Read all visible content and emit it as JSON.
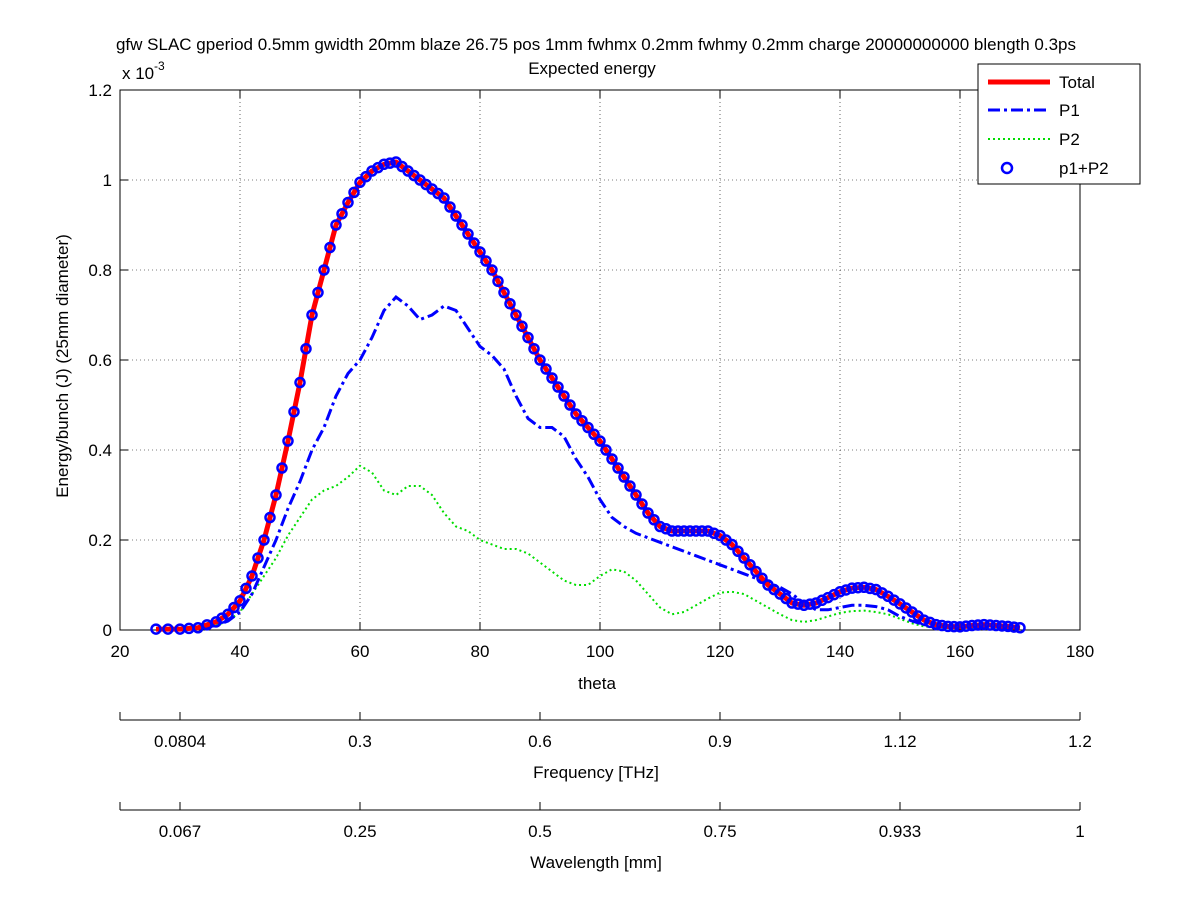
{
  "chart_data": {
    "type": "line",
    "title_line1": "gfw SLAC gperiod 0.5mm gwidth 20mm blaze 26.75 pos 1mm fwhmx 0.2mm fwhmy 0.2mm charge 20000000000 blength 0.3ps",
    "title_line2": "Expected energy",
    "xlabel": "theta",
    "ylabel": "Energy/bunch (J) (25mm diameter)",
    "y_exponent_base": "x 10",
    "y_exponent_power": "-3",
    "xlim": [
      20,
      180
    ],
    "ylim": [
      0,
      0.0012
    ],
    "xticks": [
      20,
      40,
      60,
      80,
      100,
      120,
      140,
      160,
      180
    ],
    "yticks": [
      0,
      0.2,
      0.4,
      0.6,
      0.8,
      1,
      1.2
    ],
    "grid": true,
    "legend_position": "top-right",
    "series": [
      {
        "name": "Total",
        "style": "solid",
        "color": "#ff0000",
        "x": [
          26,
          30,
          33,
          36,
          38,
          40,
          42,
          44,
          46,
          48,
          50,
          52,
          54,
          56,
          58,
          60,
          62,
          64,
          66,
          68,
          70,
          72,
          74,
          76,
          78,
          80,
          82,
          84,
          86,
          88,
          90,
          92,
          94,
          96,
          98,
          100,
          102,
          104,
          106,
          108,
          110,
          112,
          114,
          116,
          118,
          120,
          122,
          124,
          126,
          128,
          130,
          132,
          134,
          136,
          138,
          140,
          142,
          144,
          146,
          148,
          150,
          152,
          154,
          156,
          158,
          160,
          162,
          164,
          166,
          168,
          170
        ],
        "y": [
          2e-06,
          2e-06,
          5e-06,
          1.8e-05,
          3.5e-05,
          6.5e-05,
          0.00012,
          0.0002,
          0.0003,
          0.00042,
          0.00055,
          0.0007,
          0.0008,
          0.0009,
          0.00095,
          0.000995,
          0.00102,
          0.001035,
          0.00104,
          0.00102,
          0.001,
          0.00098,
          0.00096,
          0.00092,
          0.00088,
          0.00084,
          0.0008,
          0.00075,
          0.0007,
          0.00065,
          0.0006,
          0.00056,
          0.00052,
          0.00048,
          0.00045,
          0.00042,
          0.00038,
          0.00034,
          0.0003,
          0.00026,
          0.00023,
          0.00022,
          0.00022,
          0.00022,
          0.00022,
          0.00021,
          0.00019,
          0.00016,
          0.00013,
          0.0001,
          8e-05,
          6e-05,
          5.5e-05,
          6e-05,
          7.2e-05,
          8.5e-05,
          9.3e-05,
          9.5e-05,
          9e-05,
          7.5e-05,
          5.8e-05,
          4e-05,
          2.2e-05,
          1.2e-05,
          8e-06,
          7e-06,
          1e-05,
          1.2e-05,
          1e-05,
          8e-06,
          5e-06
        ]
      },
      {
        "name": "P1",
        "style": "dashdot",
        "color": "#0000ff",
        "x": [
          26,
          30,
          33,
          36,
          38,
          40,
          42,
          44,
          46,
          48,
          50,
          52,
          54,
          56,
          58,
          60,
          62,
          64,
          66,
          68,
          70,
          72,
          74,
          76,
          78,
          80,
          82,
          84,
          86,
          88,
          90,
          92,
          94,
          96,
          98,
          100,
          102,
          104,
          106,
          108,
          110,
          112,
          114,
          116,
          118,
          120,
          122,
          124,
          126,
          128,
          130,
          132,
          134,
          136,
          138,
          140,
          142,
          144,
          146,
          148,
          150,
          152,
          154,
          156,
          158,
          160,
          162,
          164,
          166,
          168,
          170
        ],
        "y": [
          5e-07,
          1e-06,
          3e-06,
          1e-05,
          2e-05,
          4e-05,
          8e-05,
          0.00014,
          0.0002,
          0.00027,
          0.00033,
          0.0004,
          0.00045,
          0.00052,
          0.00057,
          0.0006,
          0.00065,
          0.00071,
          0.00074,
          0.00072,
          0.00069,
          0.0007,
          0.00072,
          0.00071,
          0.00067,
          0.00063,
          0.00061,
          0.00058,
          0.00052,
          0.00047,
          0.00045,
          0.00045,
          0.00043,
          0.00038,
          0.00034,
          0.00029,
          0.00025,
          0.00023,
          0.000215,
          0.000205,
          0.000195,
          0.000185,
          0.000175,
          0.000165,
          0.000155,
          0.000145,
          0.000135,
          0.000125,
          0.000115,
          0.000105,
          9.5e-05,
          8e-05,
          6e-05,
          4.5e-05,
          4.5e-05,
          5e-05,
          5.5e-05,
          5.5e-05,
          5.2e-05,
          4.5e-05,
          3e-05,
          2e-05,
          1.2e-05,
          8e-06,
          6e-06,
          5e-06,
          5e-06,
          5e-06,
          4e-06,
          3e-06,
          2e-06
        ]
      },
      {
        "name": "P2",
        "style": "dotted",
        "color": "#00dd00",
        "x": [
          26,
          30,
          33,
          36,
          38,
          40,
          42,
          44,
          46,
          48,
          50,
          52,
          54,
          56,
          58,
          60,
          62,
          64,
          66,
          68,
          70,
          72,
          74,
          76,
          78,
          80,
          82,
          84,
          86,
          88,
          90,
          92,
          94,
          96,
          98,
          100,
          102,
          104,
          106,
          108,
          110,
          112,
          114,
          116,
          118,
          120,
          122,
          124,
          126,
          128,
          130,
          132,
          134,
          136,
          138,
          140,
          142,
          144,
          146,
          148,
          150,
          152,
          154,
          156,
          158,
          160,
          162,
          164,
          166,
          168,
          170
        ],
        "y": [
          5e-07,
          1e-06,
          3e-06,
          1e-05,
          2e-05,
          4e-05,
          8e-05,
          0.00012,
          0.00016,
          0.00021,
          0.00025,
          0.00029,
          0.00031,
          0.00032,
          0.00034,
          0.000365,
          0.00035,
          0.00031,
          0.0003,
          0.00032,
          0.00032,
          0.0003,
          0.00026,
          0.00023,
          0.00022,
          0.0002,
          0.00019,
          0.00018,
          0.00018,
          0.00017,
          0.00015,
          0.00013,
          0.00011,
          0.0001,
          0.0001,
          0.00012,
          0.000135,
          0.00013,
          0.00011,
          8e-05,
          5e-05,
          3.5e-05,
          4e-05,
          5.5e-05,
          7e-05,
          8.3e-05,
          8.5e-05,
          8e-05,
          6.5e-05,
          5e-05,
          3.5e-05,
          2.2e-05,
          1.8e-05,
          2.2e-05,
          3e-05,
          3.8e-05,
          4.2e-05,
          4.3e-05,
          4e-05,
          3.5e-05,
          2.5e-05,
          1.5e-05,
          8e-06,
          6e-06,
          5e-06,
          5e-06,
          5e-06,
          5e-06,
          4e-06,
          3e-06,
          2e-06
        ]
      },
      {
        "name": "p1+P2",
        "style": "circles",
        "color": "#0000ff",
        "x": [
          26,
          30,
          33,
          36,
          38,
          40,
          42,
          44,
          46,
          48,
          50,
          52,
          54,
          56,
          58,
          60,
          62,
          64,
          66,
          68,
          70,
          72,
          74,
          76,
          78,
          80,
          82,
          84,
          86,
          88,
          90,
          92,
          94,
          96,
          98,
          100,
          102,
          104,
          106,
          108,
          110,
          112,
          114,
          116,
          118,
          120,
          122,
          124,
          126,
          128,
          130,
          132,
          134,
          136,
          138,
          140,
          142,
          144,
          146,
          148,
          150,
          152,
          154,
          156,
          158,
          160,
          162,
          164,
          166,
          168,
          170
        ],
        "y": [
          2e-06,
          2e-06,
          5e-06,
          1.8e-05,
          3.5e-05,
          6.5e-05,
          0.00012,
          0.0002,
          0.0003,
          0.00042,
          0.00055,
          0.0007,
          0.0008,
          0.0009,
          0.00095,
          0.000995,
          0.00102,
          0.001035,
          0.00104,
          0.00102,
          0.001,
          0.00098,
          0.00096,
          0.00092,
          0.00088,
          0.00084,
          0.0008,
          0.00075,
          0.0007,
          0.00065,
          0.0006,
          0.00056,
          0.00052,
          0.00048,
          0.00045,
          0.00042,
          0.00038,
          0.00034,
          0.0003,
          0.00026,
          0.00023,
          0.00022,
          0.00022,
          0.00022,
          0.00022,
          0.00021,
          0.00019,
          0.00016,
          0.00013,
          0.0001,
          8e-05,
          6e-05,
          5.5e-05,
          6e-05,
          7.2e-05,
          8.5e-05,
          9.3e-05,
          9.5e-05,
          9e-05,
          7.5e-05,
          5.8e-05,
          4e-05,
          2.2e-05,
          1.2e-05,
          8e-06,
          7e-06,
          1e-05,
          1.2e-05,
          1e-05,
          8e-06,
          5e-06
        ]
      }
    ],
    "secondary_axes": [
      {
        "label": "Frequency [THz]",
        "ticks": [
          {
            "label": "0.0804",
            "theta": 30
          },
          {
            "label": "0.3",
            "theta": 60
          },
          {
            "label": "0.6",
            "theta": 90
          },
          {
            "label": "0.9",
            "theta": 120
          },
          {
            "label": "1.12",
            "theta": 150
          },
          {
            "label": "1.2",
            "theta": 180
          }
        ]
      },
      {
        "label": "Wavelength [mm]",
        "ticks": [
          {
            "label": "0.067",
            "theta": 30
          },
          {
            "label": "0.25",
            "theta": 60
          },
          {
            "label": "0.5",
            "theta": 90
          },
          {
            "label": "0.75",
            "theta": 120
          },
          {
            "label": "0.933",
            "theta": 150
          },
          {
            "label": "1",
            "theta": 180
          }
        ]
      }
    ]
  }
}
